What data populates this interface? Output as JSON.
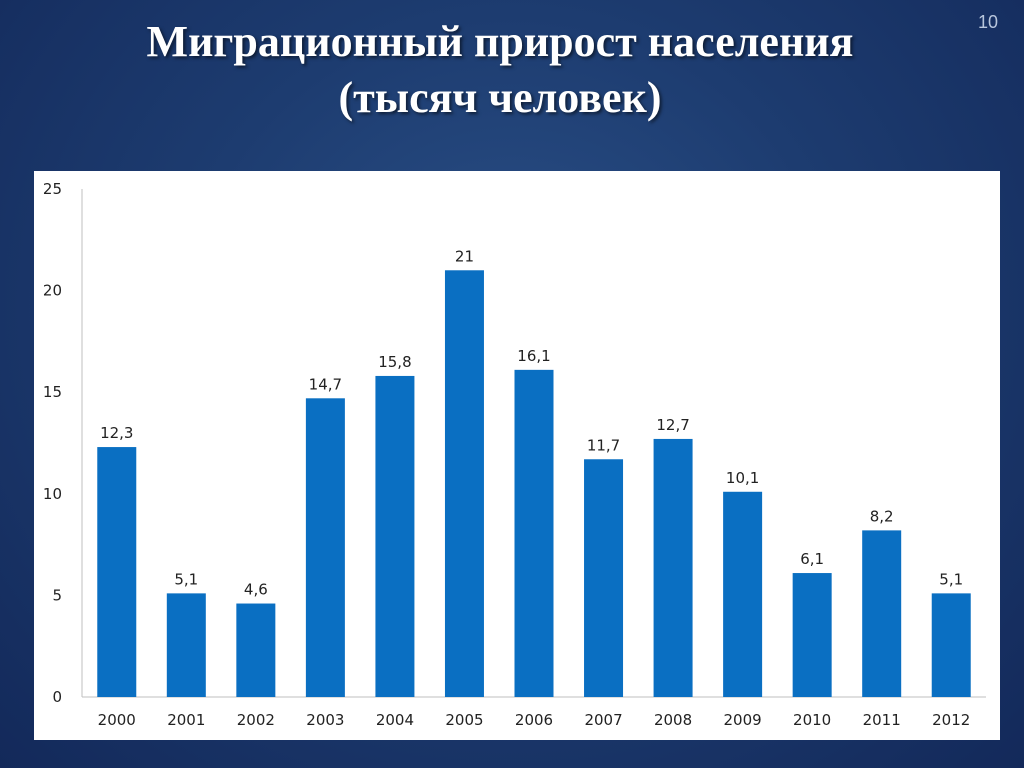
{
  "slide": {
    "title_line1": "Миграционный прирост населения",
    "title_line2": "(тысяч человек)",
    "page_number": "10"
  },
  "colors": {
    "bar": "#0a6fc2",
    "axis": "#bfbfbf",
    "background": "#1d3c70"
  },
  "chart_data": {
    "type": "bar",
    "categories": [
      "2000",
      "2001",
      "2002",
      "2003",
      "2004",
      "2005",
      "2006",
      "2007",
      "2008",
      "2009",
      "2010",
      "2011",
      "2012"
    ],
    "values": [
      12.3,
      5.1,
      4.6,
      14.7,
      15.8,
      21,
      16.1,
      11.7,
      12.7,
      10.1,
      6.1,
      8.2,
      5.1
    ],
    "value_labels": [
      "12,3",
      "5,1",
      "4,6",
      "14,7",
      "15,8",
      "21",
      "16,1",
      "11,7",
      "12,7",
      "10,1",
      "6,1",
      "8,2",
      "5,1"
    ],
    "yticks": [
      0,
      5,
      10,
      15,
      20,
      25
    ],
    "ylim": [
      0,
      25
    ],
    "grid": false,
    "legend": "none"
  }
}
